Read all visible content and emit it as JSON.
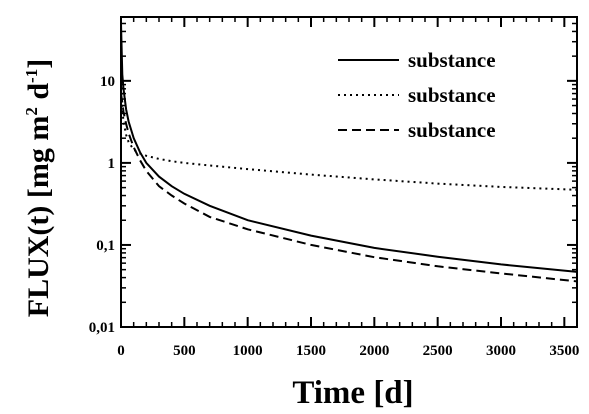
{
  "chart_data": {
    "type": "line",
    "xlabel": "Time [d]",
    "ylabel": "FLUX(t) [mg m",
    "ylabel_sup1": "2",
    "ylabel_mid": " d",
    "ylabel_sup2": "-1",
    "ylabel_end": "]",
    "xlim": [
      0,
      3600
    ],
    "ylim": [
      0.01,
      60
    ],
    "yscale": "log",
    "x_ticks": [
      0,
      500,
      1000,
      1500,
      2000,
      2500,
      3000,
      3500
    ],
    "x_tick_labels": [
      "0",
      "500",
      "1000",
      "1500",
      "2000",
      "2500",
      "3000",
      "3500"
    ],
    "y_ticks": [
      0.01,
      0.1,
      1,
      10
    ],
    "y_tick_labels": [
      "0,01",
      "0,1",
      "1",
      "10"
    ],
    "grid": false,
    "legend_position": "top-right",
    "x": [
      0,
      10,
      20,
      40,
      60,
      100,
      150,
      200,
      300,
      400,
      500,
      700,
      1000,
      1500,
      2000,
      2500,
      3000,
      3600
    ],
    "series": [
      {
        "name": "substance",
        "dash": "solid",
        "values": [
          50,
          12,
          8,
          4.5,
          3.2,
          2.0,
          1.35,
          1.0,
          0.68,
          0.52,
          0.42,
          0.3,
          0.2,
          0.13,
          0.092,
          0.072,
          0.058,
          0.047
        ]
      },
      {
        "name": "substance",
        "dash": "dotted",
        "values": [
          10,
          4.5,
          3.2,
          2.2,
          1.8,
          1.45,
          1.3,
          1.22,
          1.12,
          1.05,
          1.0,
          0.93,
          0.84,
          0.72,
          0.63,
          0.56,
          0.51,
          0.47
        ]
      },
      {
        "name": "substance",
        "dash": "dashed",
        "values": [
          7,
          5.5,
          4.2,
          3.0,
          2.3,
          1.55,
          1.08,
          0.8,
          0.52,
          0.4,
          0.32,
          0.22,
          0.155,
          0.1,
          0.071,
          0.055,
          0.045,
          0.036
        ]
      }
    ]
  }
}
